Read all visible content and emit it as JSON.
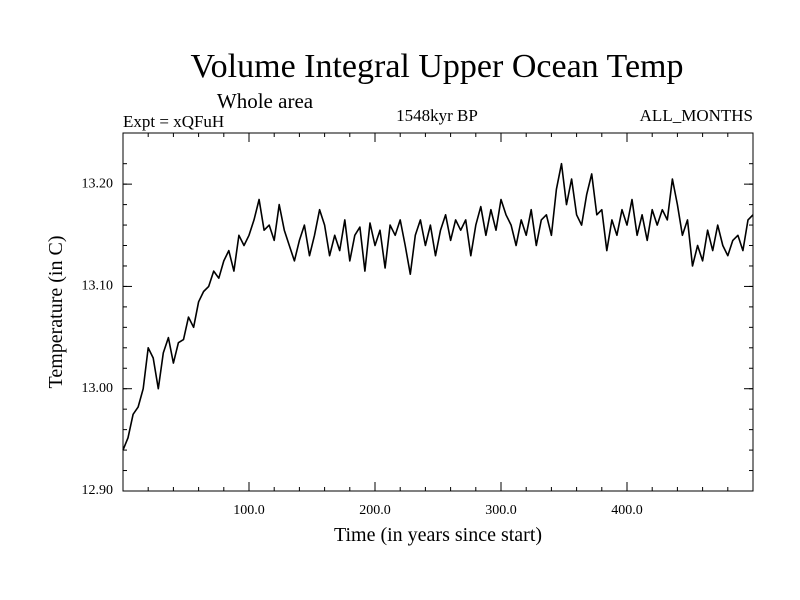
{
  "chart_data": {
    "type": "line",
    "title": "Volume Integral Upper Ocean Temp",
    "subtitle": "Whole area",
    "experiment": "Expt = xQFuH",
    "period": "1548kyr BP",
    "months": "ALL_MONTHS",
    "xlabel": "Time (in years since start)",
    "ylabel": "Temperature (in C)",
    "xlim": [
      0,
      500
    ],
    "ylim": [
      12.9,
      13.25
    ],
    "x_ticks": [
      100,
      200,
      300,
      400
    ],
    "x_tick_labels": [
      "100.0",
      "200.0",
      "300.0",
      "400.0"
    ],
    "y_ticks": [
      12.9,
      13.0,
      13.1,
      13.2
    ],
    "y_tick_labels": [
      "12.90",
      "13.00",
      "13.10",
      "13.20"
    ],
    "series": [
      {
        "name": "Volume Integral Upper Ocean Temp",
        "x": [
          0,
          4,
          8,
          12,
          16,
          20,
          24,
          28,
          32,
          36,
          40,
          44,
          48,
          52,
          56,
          60,
          64,
          68,
          72,
          76,
          80,
          84,
          88,
          92,
          96,
          100,
          104,
          108,
          112,
          116,
          120,
          124,
          128,
          132,
          136,
          140,
          144,
          148,
          152,
          156,
          160,
          164,
          168,
          172,
          176,
          180,
          184,
          188,
          192,
          196,
          200,
          204,
          208,
          212,
          216,
          220,
          224,
          228,
          232,
          236,
          240,
          244,
          248,
          252,
          256,
          260,
          264,
          268,
          272,
          276,
          280,
          284,
          288,
          292,
          296,
          300,
          304,
          308,
          312,
          316,
          320,
          324,
          328,
          332,
          336,
          340,
          344,
          348,
          352,
          356,
          360,
          364,
          368,
          372,
          376,
          380,
          384,
          388,
          392,
          396,
          400,
          404,
          408,
          412,
          416,
          420,
          424,
          428,
          432,
          436,
          440,
          444,
          448,
          452,
          456,
          460,
          464,
          468,
          472,
          476,
          480,
          484,
          488,
          492,
          496,
          500
        ],
        "values": [
          12.94,
          12.952,
          12.975,
          12.982,
          13.0,
          13.04,
          13.03,
          13.0,
          13.035,
          13.05,
          13.025,
          13.045,
          13.048,
          13.07,
          13.06,
          13.085,
          13.095,
          13.1,
          13.115,
          13.108,
          13.125,
          13.135,
          13.115,
          13.15,
          13.14,
          13.15,
          13.165,
          13.185,
          13.155,
          13.16,
          13.145,
          13.18,
          13.155,
          13.14,
          13.125,
          13.145,
          13.16,
          13.13,
          13.15,
          13.175,
          13.16,
          13.13,
          13.15,
          13.135,
          13.165,
          13.125,
          13.15,
          13.158,
          13.115,
          13.162,
          13.14,
          13.155,
          13.118,
          13.16,
          13.15,
          13.165,
          13.14,
          13.112,
          13.15,
          13.165,
          13.14,
          13.16,
          13.13,
          13.155,
          13.17,
          13.145,
          13.165,
          13.155,
          13.165,
          13.13,
          13.16,
          13.178,
          13.15,
          13.175,
          13.155,
          13.185,
          13.17,
          13.16,
          13.14,
          13.165,
          13.15,
          13.175,
          13.14,
          13.165,
          13.17,
          13.15,
          13.195,
          13.22,
          13.18,
          13.205,
          13.17,
          13.16,
          13.19,
          13.21,
          13.17,
          13.175,
          13.135,
          13.165,
          13.15,
          13.175,
          13.16,
          13.185,
          13.15,
          13.17,
          13.145,
          13.175,
          13.16,
          13.175,
          13.165,
          13.205,
          13.18,
          13.15,
          13.165,
          13.12,
          13.14,
          13.125,
          13.155,
          13.135,
          13.16,
          13.14,
          13.13,
          13.145,
          13.15,
          13.135,
          13.165,
          13.17
        ]
      }
    ]
  }
}
